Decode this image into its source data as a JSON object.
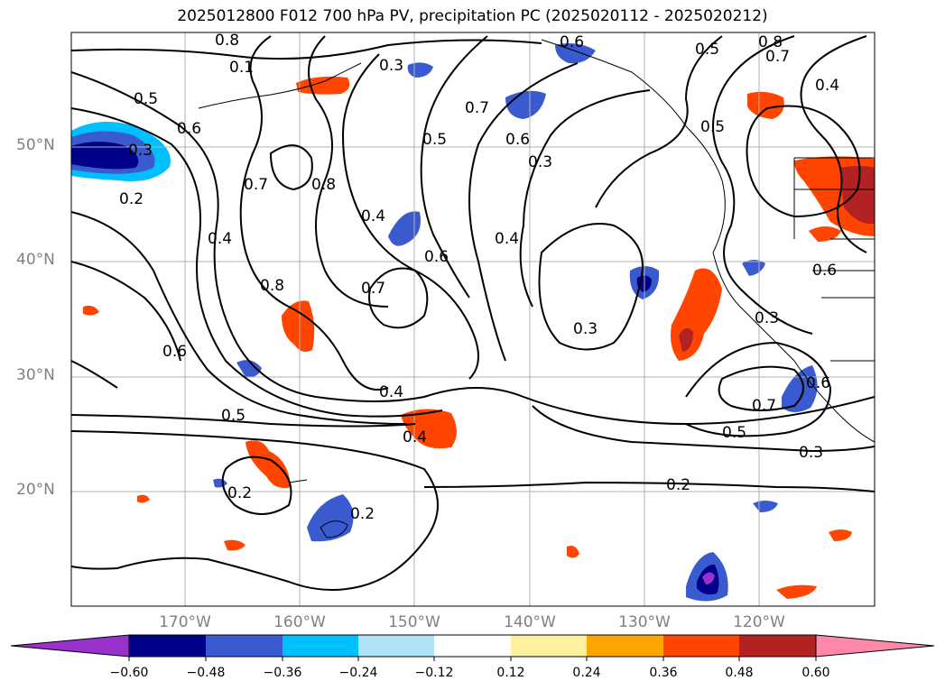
{
  "title": "2025012800 F012 700 hPa PV, precipitation PC (2025020112 - 2025020212)",
  "map": {
    "lat_labels": [
      "50°N",
      "40°N",
      "30°N",
      "20°N"
    ],
    "lon_labels": [
      "170°W",
      "160°W",
      "150°W",
      "140°W",
      "130°W",
      "120°W"
    ],
    "contour_labels": [
      "0.8",
      "0.5",
      "0.6",
      "0.3",
      "0.2",
      "0.4",
      "0.7",
      "0.8",
      "0.8",
      "0.6",
      "0.5",
      "0.4",
      "0.7",
      "0.3",
      "0.6",
      "0.4",
      "0.5",
      "0.6",
      "0.7",
      "0.2",
      "0.3",
      "0.5",
      "0.3",
      "0.6",
      "0.4",
      "0.4",
      "0.2",
      "0.3",
      "0.8",
      "0.6",
      "0.7",
      "0.5",
      "0.3",
      "0.2",
      "0.7",
      "0.1",
      "0.4",
      "0.6",
      "0.5"
    ]
  },
  "colorbar": {
    "colors": [
      "#9932cc",
      "#00008b",
      "#3a5bd0",
      "#00bfff",
      "#aee3f7",
      "#ffffff",
      "#fff0a0",
      "#ffa500",
      "#ff4500",
      "#b22222",
      "#ff88aa"
    ],
    "tick_labels": [
      "−0.60",
      "−0.48",
      "−0.36",
      "−0.24",
      "−0.12",
      "0.12",
      "0.24",
      "0.36",
      "0.48",
      "0.60"
    ]
  }
}
